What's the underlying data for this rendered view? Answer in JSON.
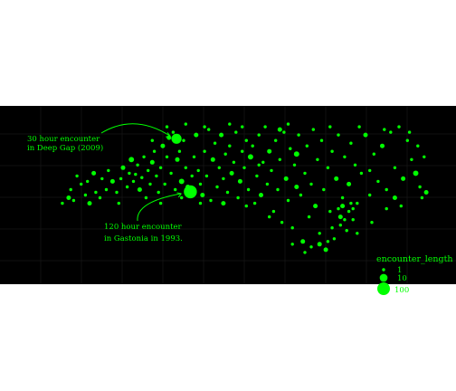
{
  "colors": {
    "background": "#000000",
    "page": "#ffffff",
    "points": "#00ff00",
    "grid": "#161616",
    "text": "#00ff00"
  },
  "chart_data": {
    "type": "scatter",
    "title": "",
    "xlabel": "",
    "ylabel": "",
    "grid": true,
    "legend_placement": "bottom-right",
    "legend": {
      "title": "encounter_length",
      "entries": [
        {
          "label": "1",
          "value": 1
        },
        {
          "label": "10",
          "value": 10
        },
        {
          "label": "100",
          "value": 100
        }
      ]
    },
    "annotations": [
      {
        "lines": [
          "30 hour encounter",
          "in Deep Gap (2009)"
        ],
        "target": [
          -81.52,
          36.23
        ],
        "value": 30
      },
      {
        "lines": [
          "120 hour encounter",
          "in Gastonia in 1993."
        ],
        "target": [
          -81.19,
          35.26
        ],
        "value": 120
      }
    ],
    "xlim": [
      -84.4,
      -75.4
    ],
    "ylim": [
      33.8,
      36.65
    ],
    "points": [
      [
        -84.25,
        35.05,
        1
      ],
      [
        -84.1,
        35.15,
        2
      ],
      [
        -83.98,
        35.1,
        1
      ],
      [
        -84.05,
        35.3,
        1
      ],
      [
        -83.7,
        35.2,
        1
      ],
      [
        -83.6,
        35.05,
        2
      ],
      [
        -83.45,
        35.25,
        1
      ],
      [
        -83.3,
        35.5,
        1
      ],
      [
        -83.8,
        35.4,
        1
      ],
      [
        -83.5,
        35.6,
        2
      ],
      [
        -83.35,
        35.15,
        1
      ],
      [
        -83.2,
        35.3,
        1
      ],
      [
        -83.05,
        35.45,
        2
      ],
      [
        -83.15,
        35.65,
        1
      ],
      [
        -82.95,
        35.25,
        1
      ],
      [
        -82.85,
        35.5,
        1
      ],
      [
        -82.8,
        35.7,
        2
      ],
      [
        -82.7,
        35.35,
        1
      ],
      [
        -82.65,
        35.6,
        1
      ],
      [
        -82.6,
        35.85,
        3
      ],
      [
        -82.55,
        35.45,
        1
      ],
      [
        -82.5,
        35.58,
        1
      ],
      [
        -82.45,
        35.75,
        1
      ],
      [
        -82.4,
        35.3,
        2
      ],
      [
        -82.35,
        35.52,
        1
      ],
      [
        -82.3,
        35.9,
        1
      ],
      [
        -82.2,
        35.65,
        1
      ],
      [
        -82.15,
        35.4,
        1
      ],
      [
        -82.1,
        35.8,
        2
      ],
      [
        -82.05,
        36.0,
        1
      ],
      [
        -82.0,
        35.55,
        1
      ],
      [
        -81.95,
        35.25,
        1
      ],
      [
        -81.9,
        35.7,
        1
      ],
      [
        -81.85,
        36.1,
        2
      ],
      [
        -81.8,
        35.4,
        1
      ],
      [
        -81.75,
        35.9,
        1
      ],
      [
        -81.7,
        36.25,
        2
      ],
      [
        -81.65,
        35.6,
        1
      ],
      [
        -81.6,
        36.35,
        1
      ],
      [
        -81.55,
        35.3,
        1
      ],
      [
        -81.52,
        36.23,
        30
      ],
      [
        -81.5,
        35.85,
        2
      ],
      [
        -81.45,
        36.0,
        1
      ],
      [
        -81.4,
        35.45,
        3
      ],
      [
        -81.35,
        36.2,
        1
      ],
      [
        -81.3,
        35.7,
        1
      ],
      [
        -81.25,
        35.35,
        2
      ],
      [
        -81.19,
        35.26,
        120
      ],
      [
        -81.15,
        35.55,
        1
      ],
      [
        -81.1,
        35.9,
        1
      ],
      [
        -81.05,
        36.3,
        2
      ],
      [
        -81.0,
        35.65,
        1
      ],
      [
        -80.95,
        35.4,
        1
      ],
      [
        -80.9,
        35.2,
        2
      ],
      [
        -80.85,
        36.0,
        1
      ],
      [
        -80.8,
        35.55,
        1
      ],
      [
        -80.75,
        36.4,
        1
      ],
      [
        -80.7,
        35.1,
        1
      ],
      [
        -80.65,
        35.85,
        2
      ],
      [
        -80.6,
        36.15,
        1
      ],
      [
        -80.55,
        35.35,
        1
      ],
      [
        -80.5,
        35.7,
        1
      ],
      [
        -80.45,
        36.3,
        2
      ],
      [
        -80.4,
        35.5,
        1
      ],
      [
        -80.35,
        35.95,
        1
      ],
      [
        -80.3,
        35.25,
        1
      ],
      [
        -80.25,
        36.1,
        1
      ],
      [
        -80.2,
        35.6,
        2
      ],
      [
        -80.15,
        35.8,
        1
      ],
      [
        -80.1,
        36.35,
        1
      ],
      [
        -80.05,
        35.15,
        1
      ],
      [
        -80.0,
        35.45,
        2
      ],
      [
        -79.95,
        36.0,
        1
      ],
      [
        -79.9,
        35.7,
        1
      ],
      [
        -79.85,
        36.2,
        1
      ],
      [
        -79.8,
        35.3,
        1
      ],
      [
        -79.75,
        35.9,
        3
      ],
      [
        -79.7,
        36.1,
        1
      ],
      [
        -79.65,
        35.05,
        1
      ],
      [
        -79.6,
        35.55,
        1
      ],
      [
        -79.55,
        36.3,
        1
      ],
      [
        -79.5,
        35.2,
        2
      ],
      [
        -79.45,
        35.8,
        1
      ],
      [
        -79.4,
        36.45,
        1
      ],
      [
        -79.35,
        35.4,
        1
      ],
      [
        -79.3,
        36.0,
        2
      ],
      [
        -79.25,
        35.65,
        1
      ],
      [
        -79.2,
        34.9,
        1
      ],
      [
        -79.15,
        36.2,
        1
      ],
      [
        -79.1,
        35.3,
        1
      ],
      [
        -79.05,
        35.85,
        1
      ],
      [
        -79.0,
        34.7,
        1
      ],
      [
        -78.95,
        36.35,
        1
      ],
      [
        -78.9,
        35.5,
        2
      ],
      [
        -78.85,
        35.1,
        1
      ],
      [
        -78.8,
        36.05,
        1
      ],
      [
        -78.75,
        34.6,
        1
      ],
      [
        -78.7,
        35.75,
        1
      ],
      [
        -78.65,
        35.95,
        3
      ],
      [
        -78.6,
        36.3,
        1
      ],
      [
        -78.55,
        35.2,
        1
      ],
      [
        -78.5,
        34.35,
        2
      ],
      [
        -78.45,
        35.6,
        1
      ],
      [
        -78.4,
        36.1,
        1
      ],
      [
        -78.35,
        34.8,
        1
      ],
      [
        -78.3,
        35.4,
        1
      ],
      [
        -78.25,
        36.4,
        1
      ],
      [
        -78.2,
        35.0,
        2
      ],
      [
        -78.15,
        35.85,
        1
      ],
      [
        -78.1,
        34.5,
        1
      ],
      [
        -78.05,
        36.2,
        1
      ],
      [
        -78.0,
        35.3,
        1
      ],
      [
        -77.95,
        34.2,
        2
      ],
      [
        -77.9,
        35.7,
        1
      ],
      [
        -77.85,
        34.9,
        1
      ],
      [
        -77.8,
        36.0,
        1
      ],
      [
        -77.75,
        34.4,
        1
      ],
      [
        -77.7,
        35.5,
        2
      ],
      [
        -77.65,
        36.3,
        1
      ],
      [
        -77.6,
        34.65,
        1
      ],
      [
        -77.55,
        35.15,
        1
      ],
      [
        -77.5,
        35.9,
        1
      ],
      [
        -77.45,
        34.55,
        1
      ],
      [
        -77.4,
        35.4,
        2
      ],
      [
        -77.35,
        36.15,
        1
      ],
      [
        -77.3,
        34.75,
        1
      ],
      [
        -77.25,
        35.75,
        1
      ],
      [
        -77.2,
        35.05,
        1
      ],
      [
        -77.1,
        35.6,
        1
      ],
      [
        -77.0,
        36.3,
        2
      ],
      [
        -76.9,
        35.2,
        1
      ],
      [
        -76.8,
        35.95,
        1
      ],
      [
        -76.7,
        35.45,
        1
      ],
      [
        -76.6,
        36.1,
        2
      ],
      [
        -76.5,
        35.3,
        1
      ],
      [
        -76.4,
        36.35,
        1
      ],
      [
        -76.3,
        35.7,
        1
      ],
      [
        -76.2,
        36.45,
        1
      ],
      [
        -76.1,
        35.5,
        2
      ],
      [
        -76.0,
        36.2,
        1
      ],
      [
        -75.9,
        35.85,
        1
      ],
      [
        -75.8,
        35.6,
        3
      ],
      [
        -75.7,
        35.35,
        1
      ],
      [
        -75.65,
        35.15,
        1
      ],
      [
        -75.55,
        35.25,
        2
      ],
      [
        -75.6,
        35.9,
        1
      ],
      [
        -75.75,
        36.1,
        1
      ],
      [
        -76.15,
        35.0,
        1
      ],
      [
        -78.3,
        34.25,
        1
      ],
      [
        -78.1,
        34.3,
        2
      ],
      [
        -77.9,
        34.35,
        1
      ],
      [
        -78.45,
        34.15,
        1
      ],
      [
        -77.8,
        34.6,
        1
      ],
      [
        -77.6,
        34.8,
        2
      ],
      [
        -77.5,
        34.75,
        1
      ],
      [
        -77.4,
        34.9,
        1
      ],
      [
        -77.3,
        34.95,
        1
      ],
      [
        -77.65,
        34.95,
        1
      ],
      [
        -77.55,
        35.0,
        2
      ],
      [
        -77.35,
        35.05,
        1
      ],
      [
        -82.25,
        35.15,
        1
      ],
      [
        -82.9,
        35.05,
        1
      ],
      [
        -83.9,
        35.55,
        1
      ],
      [
        -83.65,
        35.45,
        1
      ],
      [
        -81.9,
        35.05,
        1
      ],
      [
        -81.4,
        35.15,
        1
      ],
      [
        -80.95,
        35.05,
        1
      ],
      [
        -80.4,
        35.05,
        2
      ],
      [
        -79.85,
        35.0,
        1
      ],
      [
        -79.3,
        34.8,
        1
      ],
      [
        -78.75,
        34.3,
        1
      ],
      [
        -77.2,
        34.5,
        1
      ],
      [
        -76.85,
        34.7,
        1
      ],
      [
        -76.5,
        34.95,
        1
      ],
      [
        -76.3,
        35.15,
        2
      ],
      [
        -76.9,
        35.65,
        1
      ],
      [
        -77.15,
        36.45,
        1
      ],
      [
        -76.55,
        36.4,
        1
      ],
      [
        -75.95,
        36.35,
        1
      ],
      [
        -79.05,
        36.4,
        2
      ],
      [
        -79.95,
        36.45,
        1
      ],
      [
        -80.85,
        36.45,
        1
      ],
      [
        -81.75,
        36.45,
        1
      ],
      [
        -82.1,
        36.2,
        1
      ],
      [
        -81.3,
        36.5,
        1
      ],
      [
        -80.25,
        36.5,
        1
      ],
      [
        -78.85,
        36.5,
        1
      ],
      [
        -77.85,
        36.45,
        1
      ],
      [
        -78.65,
        35.35,
        2
      ],
      [
        -79.55,
        35.75,
        1
      ]
    ]
  }
}
